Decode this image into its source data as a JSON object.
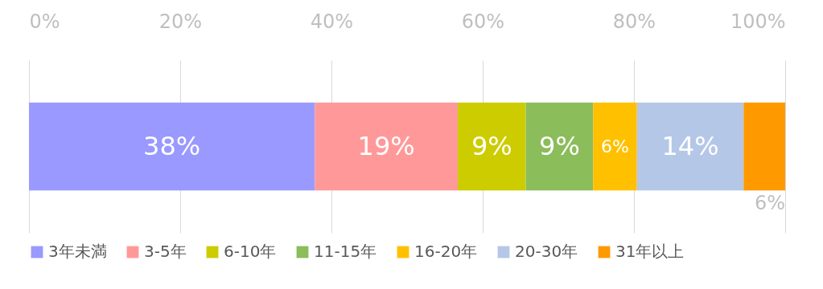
{
  "chart_data": {
    "type": "bar",
    "orientation": "horizontal",
    "stacked": true,
    "categories": [
      null
    ],
    "series": [
      {
        "name": "3年未満",
        "color": "#9999ff",
        "values": [
          37.8
        ],
        "value_labels": [
          "38%"
        ]
      },
      {
        "name": "3-5年",
        "color": "#ff9999",
        "values": [
          18.9
        ],
        "value_labels": [
          "19%"
        ]
      },
      {
        "name": "6-10年",
        "color": "#cccc00",
        "values": [
          9.0
        ],
        "value_labels": [
          "9%"
        ]
      },
      {
        "name": "11-15年",
        "color": "#8bbd5b",
        "values": [
          8.9
        ],
        "value_labels": [
          "9%"
        ]
      },
      {
        "name": "16-20年",
        "color": "#ffc000",
        "values": [
          5.8
        ],
        "value_labels": [
          "6%"
        ]
      },
      {
        "name": "20-30年",
        "color": "#b4c7e7",
        "values": [
          14.1
        ],
        "value_labels": [
          "14%"
        ]
      },
      {
        "name": "31年以上",
        "color": "#ff9900",
        "values": [
          5.5
        ],
        "value_labels": [
          "6%"
        ]
      }
    ],
    "xlim": [
      0,
      100
    ],
    "xticks": [
      {
        "value": 0,
        "label": "0%"
      },
      {
        "value": 20,
        "label": "20%"
      },
      {
        "value": 40,
        "label": "40%"
      },
      {
        "value": 60,
        "label": "60%"
      },
      {
        "value": 80,
        "label": "80%"
      },
      {
        "value": 100,
        "label": "100%"
      }
    ],
    "grid": "x",
    "legend": "bottom"
  }
}
